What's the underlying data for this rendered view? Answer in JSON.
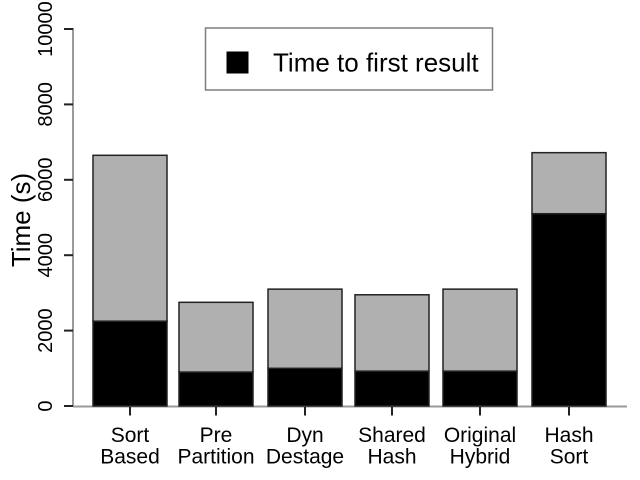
{
  "figure": {
    "background": "#ffffff"
  },
  "chart_data": {
    "type": "stacked_bar",
    "title": "",
    "categories": [
      "Sort Based",
      "Pre Partition",
      "Dyn Destage",
      "Shared Hash",
      "Original Hybrid",
      "Hash Sort"
    ],
    "category_label_lines": [
      [
        "Sort",
        "Based"
      ],
      [
        "Pre",
        "Partition"
      ],
      [
        "Dyn",
        "Destage"
      ],
      [
        "Shared",
        "Hash"
      ],
      [
        "Original",
        "Hybrid"
      ],
      [
        "Hash",
        "Sort"
      ]
    ],
    "ylabel": "Time (s)",
    "xlabel": "",
    "yticks": [
      0,
      2000,
      4000,
      6000,
      8000,
      10000
    ],
    "ytick_labels": [
      "0",
      "2000",
      "4000",
      "6000",
      "8000",
      "10000"
    ],
    "ylim": [
      0,
      10000
    ],
    "grid": false,
    "series": [
      {
        "name": "Time to first result",
        "color": "#000000",
        "values": [
          2250,
          900,
          1000,
          925,
          925,
          5100
        ]
      },
      {
        "name": "",
        "color": "#b0b0b0",
        "values": [
          4400,
          1850,
          2100,
          2025,
          2175,
          1620
        ]
      }
    ],
    "totals": [
      6650,
      2750,
      3100,
      2950,
      3100,
      6720
    ],
    "legend": {
      "position": "top-center",
      "entries": [
        {
          "label": "Time to first result",
          "color": "#000000"
        }
      ]
    }
  }
}
